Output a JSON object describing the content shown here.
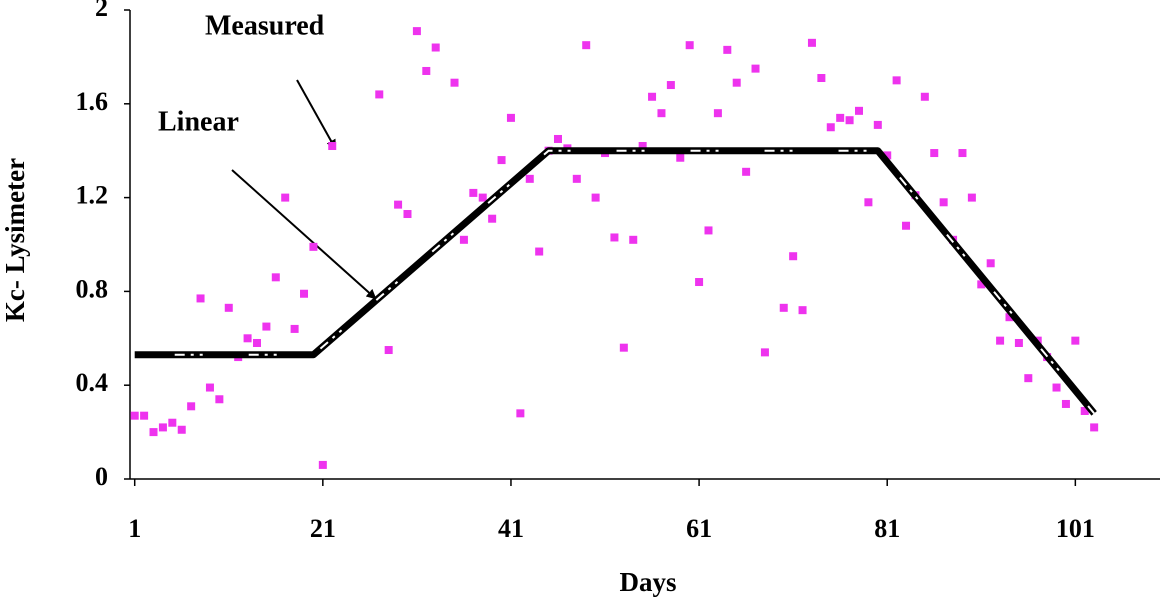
{
  "chart_data": {
    "type": "scatter",
    "x_label": "Days",
    "y_label": "Kc- Lysimeter",
    "xlim": [
      0.5,
      110
    ],
    "ylim": [
      0,
      2
    ],
    "xticks": [
      1,
      21,
      41,
      61,
      81,
      101
    ],
    "yticks": [
      0,
      0.4,
      0.8,
      1.2,
      1.6,
      2
    ],
    "grid": false,
    "series": [
      {
        "name": "Measured",
        "color": "#ee33ee",
        "x": [
          1,
          2,
          3,
          4,
          5,
          6,
          7,
          8,
          9,
          10,
          11,
          12,
          13,
          14,
          15,
          16,
          17,
          18,
          19,
          20,
          21,
          22,
          27,
          28,
          29,
          30,
          31,
          32,
          33,
          35,
          36,
          37,
          38,
          39,
          40,
          41,
          42,
          43,
          44,
          45,
          46,
          47,
          48,
          49,
          50,
          51,
          52,
          53,
          54,
          55,
          56,
          57,
          58,
          59,
          60,
          61,
          62,
          63,
          64,
          65,
          66,
          67,
          68,
          70,
          71,
          72,
          73,
          74,
          75,
          76,
          77,
          78,
          79,
          80,
          81,
          82,
          83,
          84,
          85,
          86,
          87,
          88,
          89,
          90,
          91,
          92,
          93,
          94,
          95,
          96,
          97,
          98,
          99,
          100,
          101,
          102,
          103
        ],
        "values": [
          0.27,
          0.27,
          0.2,
          0.22,
          0.24,
          0.21,
          0.31,
          0.77,
          0.39,
          0.34,
          0.73,
          0.52,
          0.6,
          0.58,
          0.65,
          0.86,
          1.2,
          0.64,
          0.79,
          0.99,
          0.06,
          1.42,
          1.64,
          0.55,
          1.17,
          1.13,
          1.91,
          1.74,
          1.84,
          1.69,
          1.02,
          1.22,
          1.2,
          1.11,
          1.36,
          1.54,
          0.28,
          1.28,
          0.97,
          1.4,
          1.45,
          1.41,
          1.28,
          1.85,
          1.2,
          1.39,
          1.03,
          0.56,
          1.02,
          1.42,
          1.63,
          1.56,
          1.68,
          1.37,
          1.85,
          0.84,
          1.06,
          1.56,
          1.83,
          1.69,
          1.31,
          1.75,
          0.54,
          0.73,
          0.95,
          0.72,
          1.86,
          1.71,
          1.5,
          1.54,
          1.53,
          1.57,
          1.18,
          1.51,
          1.38,
          1.7,
          1.08,
          1.21,
          1.63,
          1.39,
          1.18,
          1.02,
          1.39,
          1.2,
          0.83,
          0.92,
          0.59,
          0.69,
          0.58,
          0.43,
          0.59,
          0.52,
          0.39,
          0.32,
          0.59,
          0.29,
          0.22
        ]
      },
      {
        "name": "Linear",
        "color": "#000000",
        "x": [
          1,
          20,
          45,
          80,
          103
        ],
        "values": [
          0.53,
          0.53,
          1.4,
          1.4,
          0.28
        ]
      }
    ]
  }
}
